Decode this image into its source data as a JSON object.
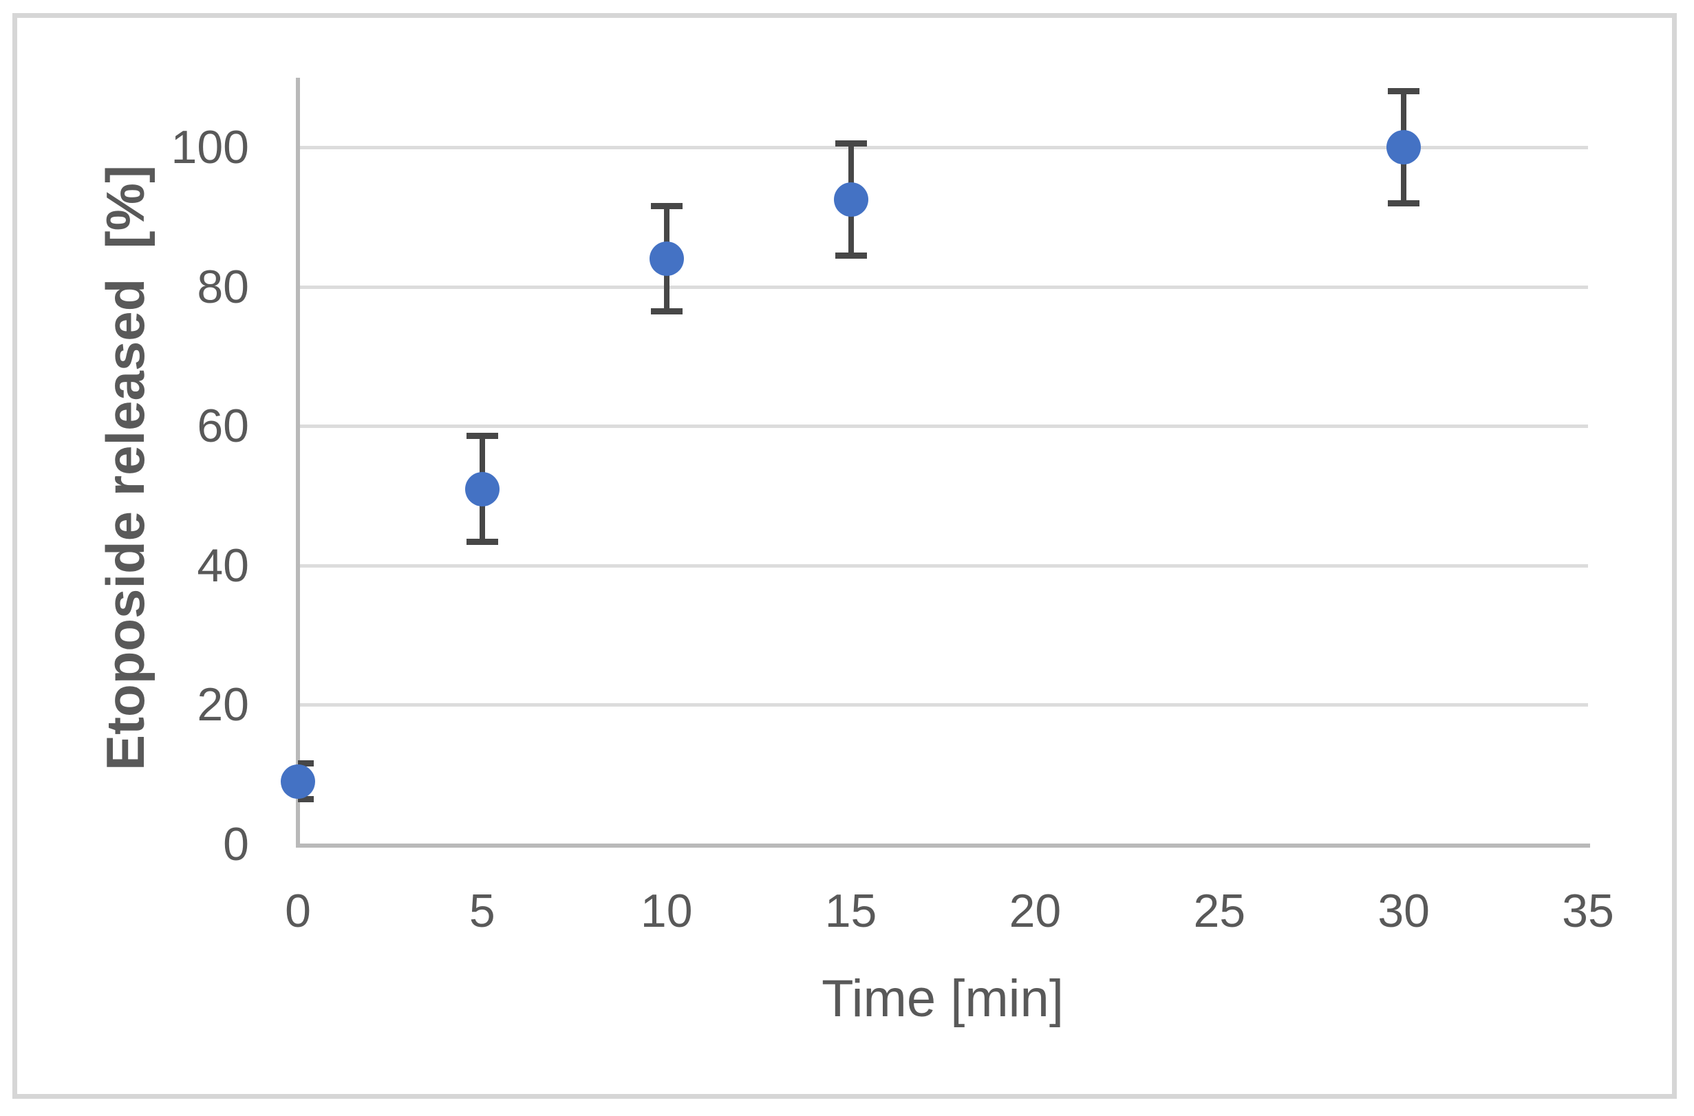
{
  "figure": {
    "background_color": "#ffffff",
    "border_color": "#d6d6d6"
  },
  "chart_data": {
    "type": "scatter",
    "title": "",
    "xlabel": "Time [min]",
    "ylabel": "Etoposide released  [%]",
    "x": [
      0,
      5,
      10,
      15,
      30
    ],
    "y": [
      9,
      51,
      84,
      92.5,
      100
    ],
    "y_error": [
      3,
      8,
      8,
      8.5,
      8.5
    ],
    "xlim": [
      0,
      35
    ],
    "ylim": [
      0,
      110
    ],
    "x_ticks": [
      "0",
      "5",
      "10",
      "15",
      "20",
      "25",
      "30",
      "35"
    ],
    "x_tick_values": [
      0,
      5,
      10,
      15,
      20,
      25,
      30,
      35
    ],
    "y_ticks": [
      "0",
      "20",
      "40",
      "60",
      "80",
      "100"
    ],
    "y_tick_values": [
      0,
      20,
      40,
      60,
      80,
      100
    ],
    "grid": "horizontal-gridlines-on",
    "legend": "none",
    "marker_color": "#4472c4",
    "error_bar_color": "#474747",
    "gridline_color": "#dcdcdc",
    "axis_line_color": "#b9b9b9",
    "text_color": "#595959"
  }
}
